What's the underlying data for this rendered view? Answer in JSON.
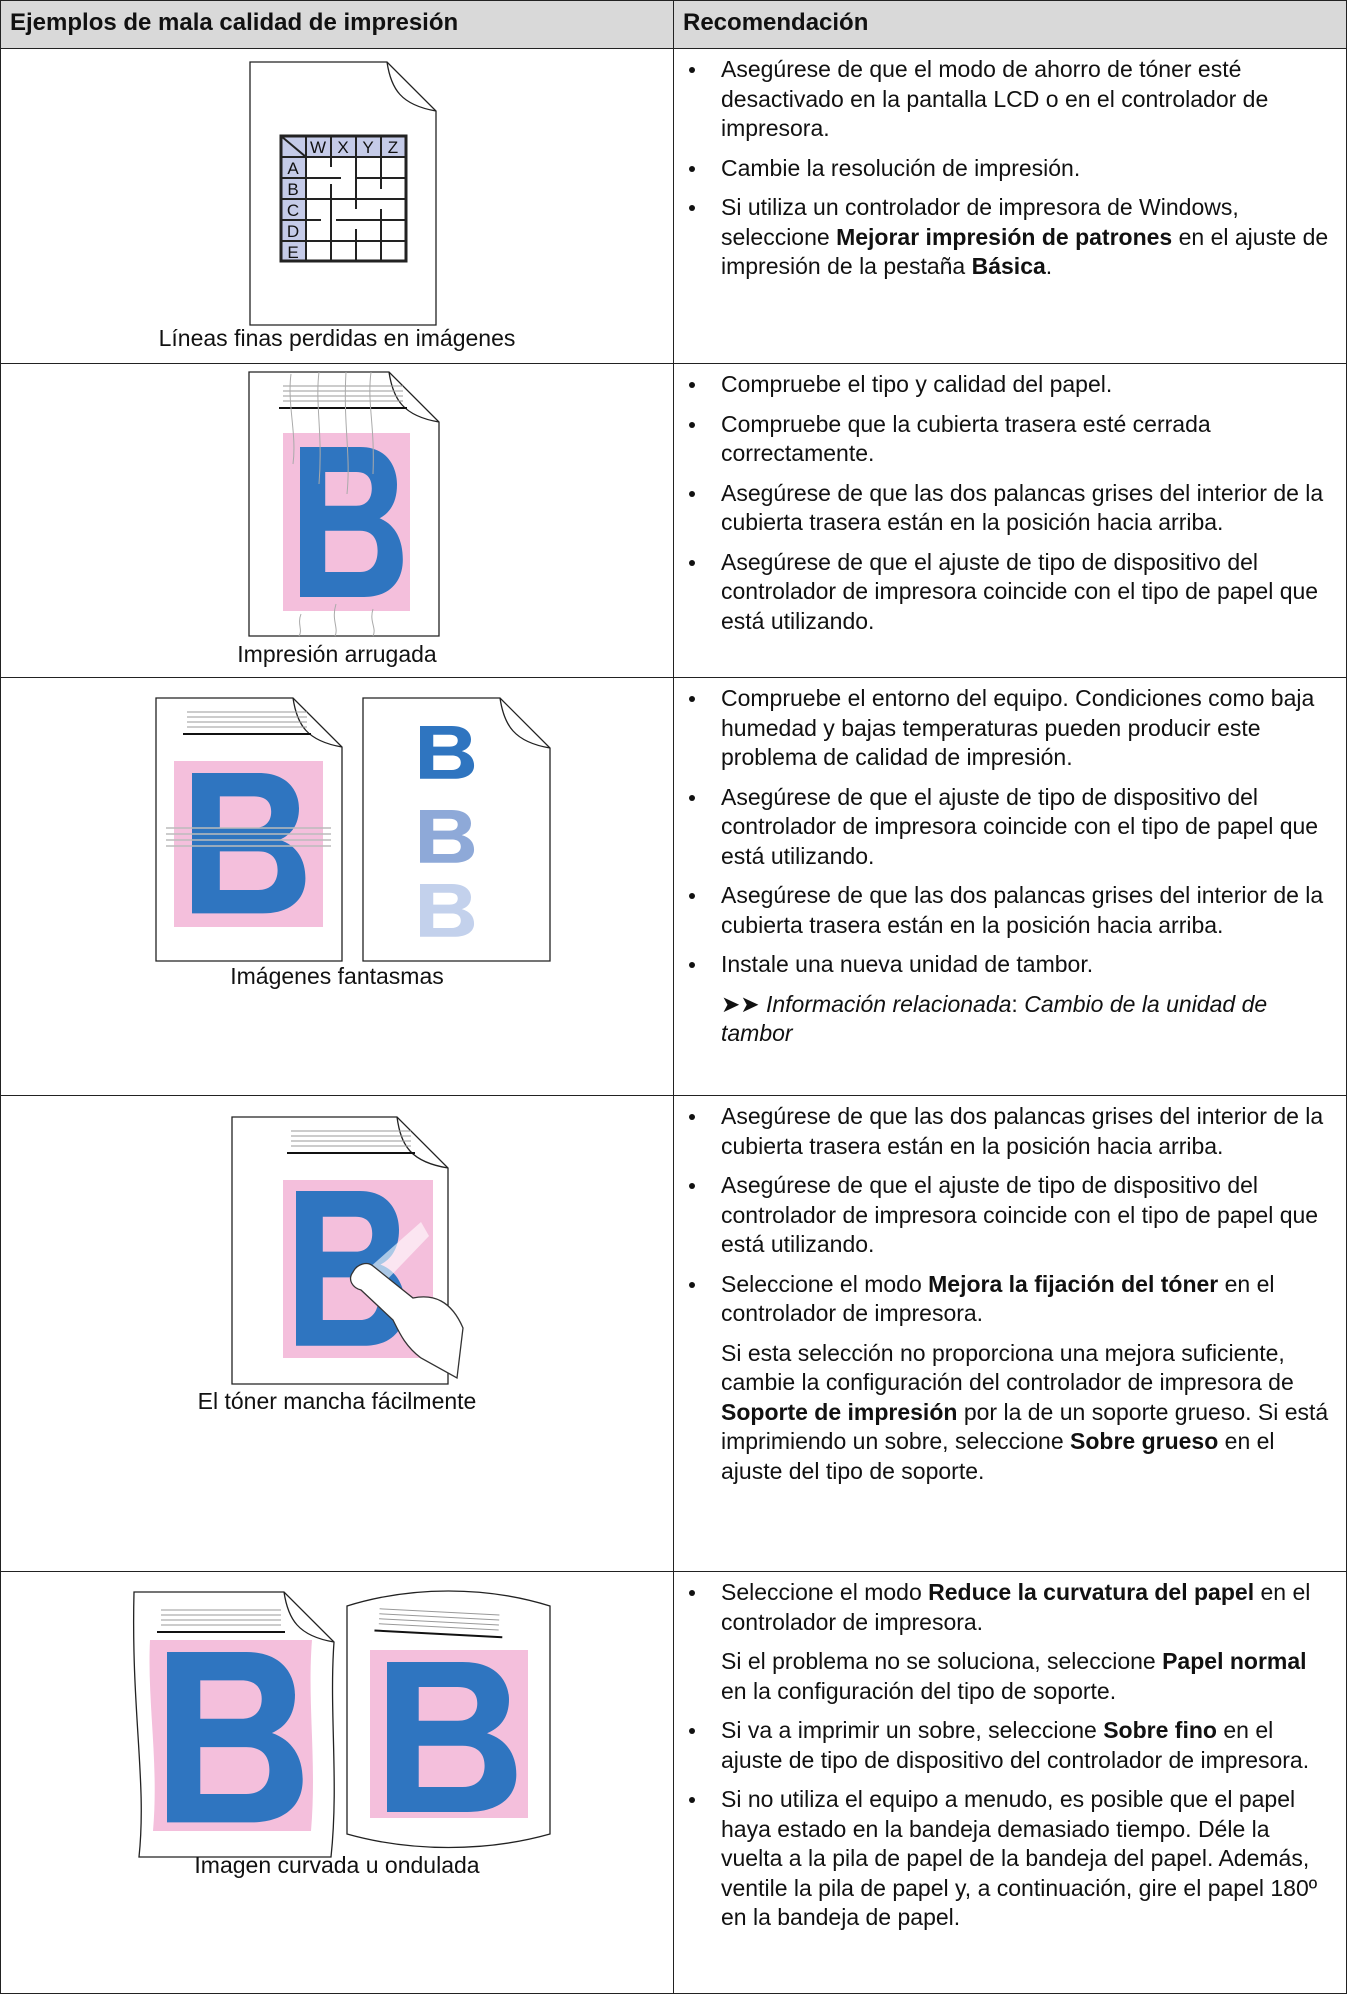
{
  "table": {
    "header": [
      "Ejemplos de mala calidad de impresión",
      "Recomendación"
    ],
    "rows": [
      {
        "caption": "Líneas finas perdidas en imágenes",
        "illustration": {
          "columns": [
            "W",
            "X",
            "Y",
            "Z"
          ],
          "rows": [
            "A",
            "B",
            "C",
            "D",
            "E"
          ]
        },
        "items": [
          [
            [
              "Asegúrese de que el modo de ahorro de tóner esté desactivado en la pantalla LCD o en el controlador de impresora."
            ]
          ],
          [
            [
              "Cambie la resolución de impresión."
            ]
          ],
          [
            [
              "Si utiliza un controlador de impresora de Windows, seleccione ",
              {
                "b": "Mejorar impresión de patrones"
              },
              " en el ajuste de impresión de la pestaña ",
              {
                "b": "Básica"
              },
              "."
            ]
          ]
        ]
      },
      {
        "caption": "Impresión arrugada",
        "items": [
          [
            [
              "Compruebe el tipo y calidad del papel."
            ]
          ],
          [
            [
              "Compruebe que la cubierta trasera esté cerrada correctamente."
            ]
          ],
          [
            [
              "Asegúrese de que las dos palancas grises del interior de la cubierta trasera están en la posición hacia arriba."
            ]
          ],
          [
            [
              "Asegúrese de que el ajuste de tipo de dispositivo del controlador de impresora coincide con el tipo de papel que está utilizando."
            ]
          ]
        ]
      },
      {
        "caption": "Imágenes fantasmas",
        "items": [
          [
            [
              "Compruebe el entorno del equipo. Condiciones como baja humedad y bajas temperaturas pueden producir este problema de calidad de impresión."
            ]
          ],
          [
            [
              "Asegúrese de que el ajuste de tipo de dispositivo del controlador de impresora coincide con el tipo de papel que está utilizando."
            ]
          ],
          [
            [
              "Asegúrese de que las dos palancas grises del interior de la cubierta trasera están en la posición hacia arriba."
            ]
          ],
          [
            [
              "Instale una nueva unidad de tambor."
            ],
            [
              "➤➤ ",
              {
                "i": "Información relacionada"
              },
              ": ",
              {
                "i": "Cambio de la unidad de tambor"
              }
            ]
          ]
        ]
      },
      {
        "caption": "El tóner mancha fácilmente",
        "items": [
          [
            [
              "Asegúrese de que las dos palancas grises del interior de la cubierta trasera están en la posición hacia arriba."
            ]
          ],
          [
            [
              "Asegúrese de que el ajuste de tipo de dispositivo del controlador de impresora coincide con el tipo de papel que está utilizando."
            ]
          ],
          [
            [
              "Seleccione el modo ",
              {
                "b": "Mejora la fijación del tóner"
              },
              " en el controlador de impresora."
            ],
            [
              "Si esta selección no proporciona una mejora suficiente, cambie la configuración del controlador de impresora de ",
              {
                "b": "Soporte de impresión"
              },
              " por la de un soporte grueso. Si está imprimiendo un sobre, seleccione ",
              {
                "b": "Sobre grueso"
              },
              " en el ajuste del tipo de soporte."
            ]
          ]
        ]
      },
      {
        "caption": "Imagen curvada u ondulada",
        "items": [
          [
            [
              "Seleccione el modo ",
              {
                "b": "Reduce la curvatura del papel"
              },
              " en el controlador de impresora."
            ],
            [
              "Si el problema no se soluciona, seleccione ",
              {
                "b": "Papel normal"
              },
              " en la configuración del tipo de soporte."
            ]
          ],
          [
            [
              "Si va a imprimir un sobre, seleccione ",
              {
                "b": "Sobre fino"
              },
              " en el ajuste de tipo de dispositivo del controlador de impresora."
            ]
          ],
          [
            [
              "Si no utiliza el equipo a menudo, es posible que el papel haya estado en la bandeja demasiado tiempo. Déle la vuelta a la pila de papel de la bandeja del papel. Además, ventile la pila de papel y, a continuación, gire el papel 180º en la bandeja de papel."
            ]
          ]
        ]
      }
    ]
  }
}
